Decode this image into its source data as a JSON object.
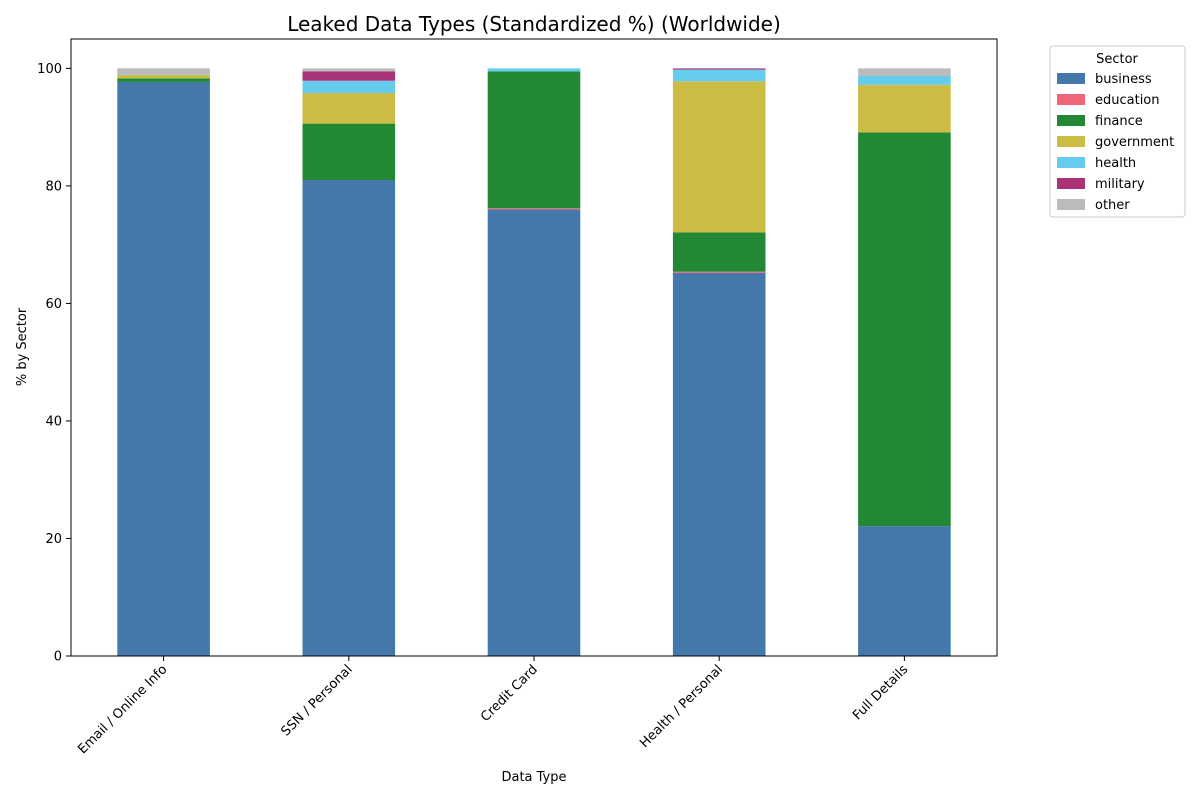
{
  "chart_data": {
    "type": "bar",
    "stacked": true,
    "title": "Leaked Data Types (Standardized %) (Worldwide)",
    "xlabel": "Data Type",
    "ylabel": "% by Sector",
    "ylim": [
      0,
      105
    ],
    "yticks": [
      0,
      20,
      40,
      60,
      80,
      100
    ],
    "grid": false,
    "legend_title": "Sector",
    "legend_position": "outside-top-right",
    "categories": [
      "Email / Online Info",
      "SSN / Personal",
      "Credit Card",
      "Health / Personal",
      "Full Details"
    ],
    "series": [
      {
        "name": "business",
        "color": "#4477aa",
        "values": [
          97.7,
          81.0,
          76.0,
          65.2,
          22.1
        ]
      },
      {
        "name": "education",
        "color": "#ee6677",
        "values": [
          0.0,
          0.0,
          0.2,
          0.2,
          0.0
        ]
      },
      {
        "name": "finance",
        "color": "#228833",
        "values": [
          0.6,
          9.6,
          23.3,
          6.7,
          67.0
        ]
      },
      {
        "name": "government",
        "color": "#ccbb44",
        "values": [
          0.6,
          5.2,
          0.0,
          25.7,
          8.1
        ]
      },
      {
        "name": "health",
        "color": "#66ccee",
        "values": [
          0.1,
          2.1,
          0.5,
          2.0,
          1.5
        ]
      },
      {
        "name": "military",
        "color": "#aa3377",
        "values": [
          0.0,
          1.6,
          0.0,
          0.2,
          0.0
        ]
      },
      {
        "name": "other",
        "color": "#bbbbbb",
        "values": [
          1.0,
          0.5,
          0.0,
          0.0,
          1.3
        ]
      }
    ]
  }
}
